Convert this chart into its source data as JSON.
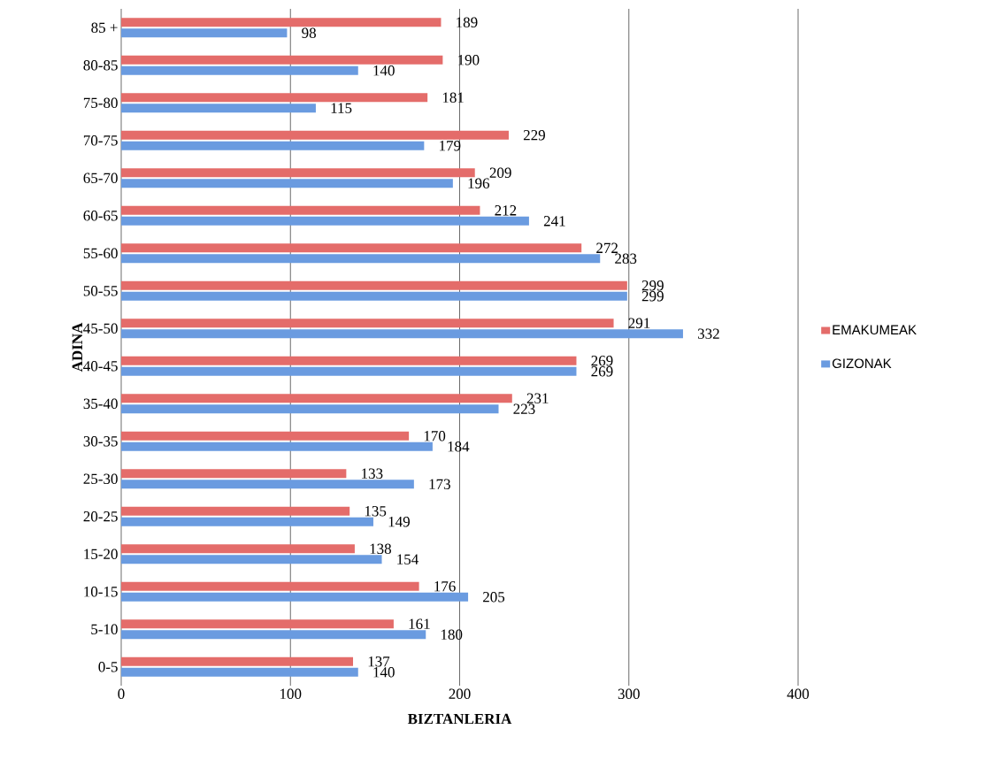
{
  "chart_data": {
    "type": "bar",
    "orientation": "horizontal",
    "xlabel": "BIZTANLERIA",
    "ylabel": "ADINA",
    "categories": [
      "85 +",
      "80-85",
      "75-80",
      "70-75",
      "65-70",
      "60-65",
      "55-60",
      "50-55",
      "45-50",
      "40-45",
      "35-40",
      "30-35",
      "25-30",
      "20-25",
      "15-20",
      "10-15",
      "5-10",
      "0-5"
    ],
    "series": [
      {
        "name": "EMAKUMEAK",
        "color": "#e46c6a",
        "values": [
          189,
          190,
          181,
          229,
          209,
          212,
          272,
          299,
          291,
          269,
          231,
          170,
          133,
          135,
          138,
          176,
          161,
          137
        ]
      },
      {
        "name": "GIZONAK",
        "color": "#6a9be0",
        "values": [
          98,
          140,
          115,
          179,
          196,
          241,
          283,
          299,
          332,
          269,
          223,
          184,
          173,
          149,
          154,
          205,
          180,
          140
        ]
      }
    ],
    "xlim": [
      0,
      400
    ],
    "xticks": [
      0,
      100,
      200,
      300,
      400
    ],
    "grid": "x",
    "legend": "right",
    "data_labels": true
  }
}
